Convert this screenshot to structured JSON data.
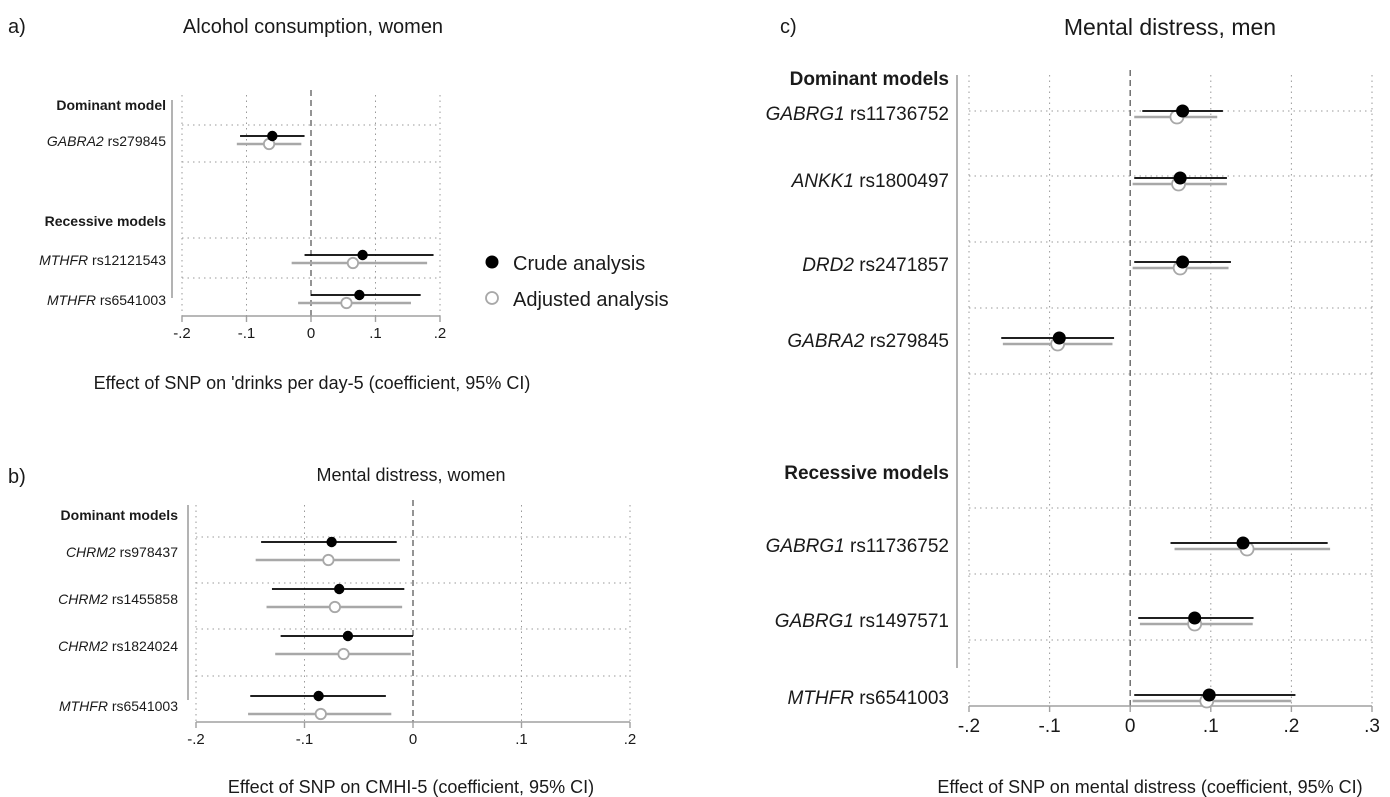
{
  "legend": {
    "crude": "Crude analysis",
    "adjusted": "Adjusted analysis",
    "crude_color": "#000000",
    "adjusted_color": "#a8a8a8"
  },
  "chart_data": [
    {
      "type": "forest",
      "panel_label": "a)",
      "title": "Alcohol consumption, women",
      "xlabel": "Effect of SNP on 'drinks per day-5 (coefficient, 95% CI)",
      "xlim": [
        -0.2,
        0.2
      ],
      "xticks": [
        -0.2,
        -0.1,
        0,
        0.1,
        0.2
      ],
      "xtick_labels": [
        "-.2",
        "-.1",
        "0",
        ".1",
        ".2"
      ],
      "rows": [
        {
          "kind": "header",
          "label": "Dominant model"
        },
        {
          "kind": "snp",
          "gene": "GABRA2",
          "snp": "rs279845",
          "crude": [
            -0.06,
            -0.11,
            -0.01
          ],
          "adjusted": [
            -0.065,
            -0.115,
            -0.015
          ]
        },
        {
          "kind": "header",
          "label": "Recessive models"
        },
        {
          "kind": "snp",
          "gene": "MTHFR",
          "snp": "rs12121543",
          "crude": [
            0.08,
            -0.01,
            0.19
          ],
          "adjusted": [
            0.065,
            -0.03,
            0.18
          ]
        },
        {
          "kind": "snp",
          "gene": "MTHFR",
          "snp": "rs6541003",
          "crude": [
            0.075,
            0.0,
            0.17
          ],
          "adjusted": [
            0.055,
            -0.02,
            0.155
          ]
        }
      ]
    },
    {
      "type": "forest",
      "panel_label": "b)",
      "title": "Mental distress, women",
      "xlabel": "Effect of SNP on CMHI-5 (coefficient, 95% CI)",
      "xlim": [
        -0.2,
        0.2
      ],
      "xticks": [
        -0.2,
        -0.1,
        0,
        0.1,
        0.2
      ],
      "xtick_labels": [
        "-.2",
        "-.1",
        "0",
        ".1",
        ".2"
      ],
      "rows": [
        {
          "kind": "header",
          "label": "Dominant models"
        },
        {
          "kind": "snp",
          "gene": "CHRM2",
          "snp": "rs978437",
          "crude": [
            -0.075,
            -0.14,
            -0.015
          ],
          "adjusted": [
            -0.078,
            -0.145,
            -0.012
          ]
        },
        {
          "kind": "snp",
          "gene": "CHRM2",
          "snp": "rs1455858",
          "crude": [
            -0.068,
            -0.13,
            -0.008
          ],
          "adjusted": [
            -0.072,
            -0.135,
            -0.01
          ]
        },
        {
          "kind": "snp",
          "gene": "CHRM2",
          "snp": "rs1824024",
          "crude": [
            -0.06,
            -0.122,
            0.0
          ],
          "adjusted": [
            -0.064,
            -0.127,
            -0.002
          ]
        },
        {
          "kind": "snp",
          "gene": "MTHFR",
          "snp": "rs6541003",
          "crude": [
            -0.087,
            -0.15,
            -0.025
          ],
          "adjusted": [
            -0.085,
            -0.152,
            -0.02
          ]
        }
      ]
    },
    {
      "type": "forest",
      "panel_label": "c)",
      "title": "Mental distress, men",
      "xlabel": "Effect of SNP on mental distress (coefficient, 95% CI)",
      "xlim": [
        -0.2,
        0.3
      ],
      "xticks": [
        -0.2,
        -0.1,
        0,
        0.1,
        0.2,
        0.3
      ],
      "xtick_labels": [
        "-.2",
        "-.1",
        "0",
        ".1",
        ".2",
        ".3"
      ],
      "rows": [
        {
          "kind": "header",
          "label": "Dominant models"
        },
        {
          "kind": "snp",
          "gene": "GABRG1",
          "snp": "rs11736752",
          "crude": [
            0.065,
            0.015,
            0.115
          ],
          "adjusted": [
            0.058,
            0.005,
            0.108
          ]
        },
        {
          "kind": "snp",
          "gene": "ANKK1",
          "snp": "rs1800497",
          "crude": [
            0.062,
            0.005,
            0.12
          ],
          "adjusted": [
            0.06,
            0.003,
            0.12
          ]
        },
        {
          "kind": "snp",
          "gene": "DRD2",
          "snp": "rs2471857",
          "crude": [
            0.065,
            0.005,
            0.125
          ],
          "adjusted": [
            0.062,
            0.003,
            0.122
          ]
        },
        {
          "kind": "snp",
          "gene": "GABRA2",
          "snp": "rs279845",
          "crude": [
            -0.088,
            -0.16,
            -0.02
          ],
          "adjusted": [
            -0.09,
            -0.158,
            -0.022
          ]
        },
        {
          "kind": "gap"
        },
        {
          "kind": "header",
          "label": "Recessive models"
        },
        {
          "kind": "snp",
          "gene": "GABRG1",
          "snp": "rs11736752",
          "crude": [
            0.14,
            0.05,
            0.245
          ],
          "adjusted": [
            0.145,
            0.055,
            0.248
          ]
        },
        {
          "kind": "snp",
          "gene": "GABRG1",
          "snp": "rs1497571",
          "crude": [
            0.08,
            0.01,
            0.153
          ],
          "adjusted": [
            0.08,
            0.012,
            0.152
          ]
        },
        {
          "kind": "snp",
          "gene": "MTHFR",
          "snp": "rs6541003",
          "crude": [
            0.098,
            0.005,
            0.205
          ],
          "adjusted": [
            0.095,
            0.003,
            0.2
          ]
        }
      ]
    }
  ]
}
